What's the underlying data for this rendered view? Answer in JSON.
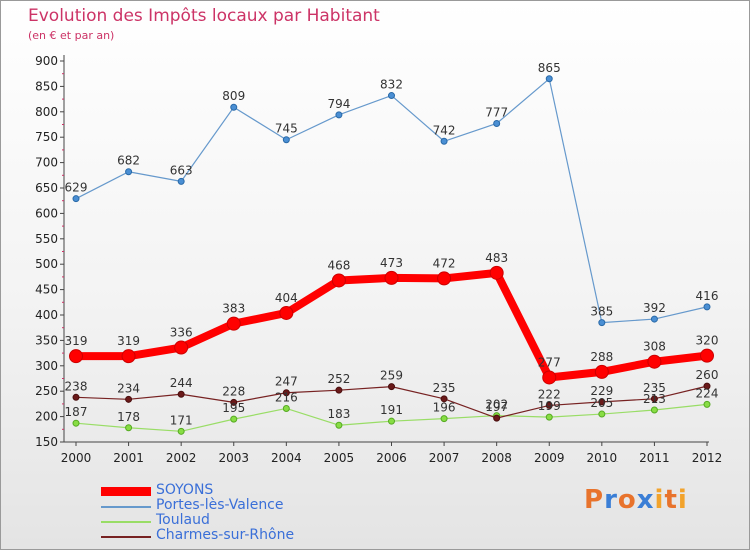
{
  "title": "Evolution des Impôts locaux par Habitant",
  "subtitle": "(en € et par an)",
  "brand": {
    "letters": [
      "P",
      "r",
      "o",
      "x",
      "i",
      "t",
      "i"
    ],
    "colors": [
      "#e8732c",
      "#3a7ed6",
      "#e8732c",
      "#3a7ed6",
      "#f2a32c",
      "#e8732c",
      "#f2a32c"
    ]
  },
  "chart_data": {
    "type": "line",
    "categories": [
      "2000",
      "2001",
      "2002",
      "2003",
      "2004",
      "2005",
      "2006",
      "2007",
      "2008",
      "2009",
      "2010",
      "2011",
      "2012"
    ],
    "ylim": [
      150,
      900
    ],
    "yticks": [
      "150",
      "200",
      "250",
      "300",
      "350",
      "400",
      "450",
      "500",
      "550",
      "600",
      "650",
      "700",
      "750",
      "800",
      "850",
      "900"
    ],
    "grid": false,
    "series": [
      {
        "name": "SOYONS",
        "color": "#ff0000",
        "values": [
          319,
          319,
          336,
          383,
          404,
          468,
          473,
          472,
          483,
          277,
          288,
          308,
          320
        ]
      },
      {
        "name": "Portes-lès-Valence",
        "color": "#6699cc",
        "values": [
          629,
          682,
          663,
          809,
          745,
          794,
          832,
          742,
          777,
          865,
          385,
          392,
          416
        ]
      },
      {
        "name": "Toulaud",
        "color": "#99dd66",
        "values": [
          187,
          178,
          171,
          195,
          216,
          183,
          191,
          196,
          202,
          199,
          205,
          213,
          224
        ]
      },
      {
        "name": "Charmes-sur-Rhône",
        "color": "#772222",
        "values": [
          238,
          234,
          244,
          228,
          247,
          252,
          259,
          235,
          197,
          222,
          229,
          235,
          260
        ]
      }
    ],
    "label_text": {
      "SOYONS": [
        "319",
        "319",
        "336",
        "383",
        "404",
        "468",
        "473",
        "472",
        "483",
        "277",
        "288",
        "308",
        "320"
      ],
      "Portes-lès-Valence": [
        "629",
        "682",
        "663",
        "809",
        "745",
        "794",
        "832",
        "742",
        "777",
        "865",
        "385",
        "392",
        "416"
      ],
      "Toulaud": [
        "187",
        "178",
        "171",
        "195",
        "216",
        "183",
        "191",
        "196",
        "202",
        "199",
        "205",
        "213",
        "224"
      ],
      "Charmes-sur-Rhône": [
        "238",
        "234",
        "244",
        "228",
        "247",
        "252",
        "259",
        "235",
        "197",
        "222",
        "229",
        "235",
        "260"
      ]
    }
  }
}
